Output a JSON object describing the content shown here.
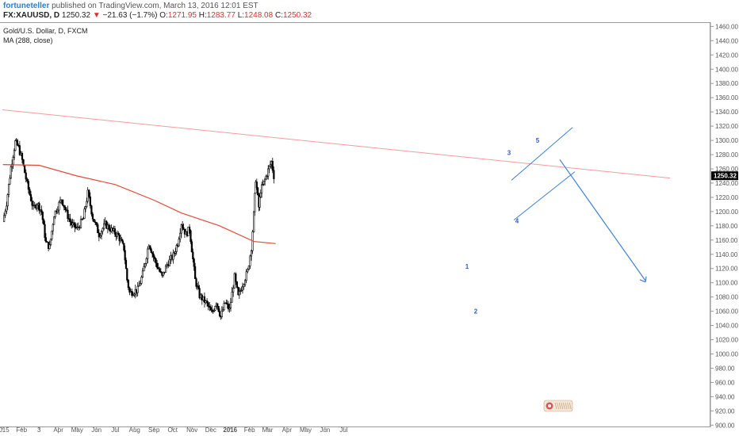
{
  "header": {
    "author": "fortuneteller",
    "published_text": "published on TradingView.com, March 13, 2016 12:01 EST",
    "symbol": "FX:XAUUSD, D",
    "last": "1250.32",
    "change_arrow": "▼",
    "change": "−21.63 (−1.7%)",
    "o_label": "O:",
    "o": "1271.95",
    "h_label": "H:",
    "h": "1283.77",
    "l_label": "L:",
    "l": "1248.08",
    "c_label": "C:",
    "c": "1250.32"
  },
  "legend": {
    "title": "Gold/U.S. Dollar, D, FXCM",
    "indicator": "MA (288, close)"
  },
  "colors": {
    "candle": "#000000",
    "ma": "#e24a3b",
    "trendline": "#f29c9c",
    "channel": "#3d7fd6",
    "arrow": "#3d7fd6",
    "wave_label": "#2f5fb8",
    "price_tag_bg": "#000000"
  },
  "chart_data": {
    "type": "candlestick",
    "symbol": "XAUUSD",
    "timeframe": "D",
    "y_axis_ticks": [
      900,
      920,
      940,
      960,
      980,
      1000,
      1020,
      1040,
      1060,
      1080,
      1100,
      1120,
      1140,
      1160,
      1180,
      1200,
      1220,
      1240,
      1260,
      1280,
      1300,
      1320,
      1340,
      1360,
      1380,
      1400,
      1420,
      1440,
      1460
    ],
    "ylim": [
      895,
      1470
    ],
    "x_axis_labels": [
      "2015",
      "Feb",
      "3",
      "Apr",
      "May",
      "Jun",
      "Jul",
      "Aug",
      "Sep",
      "Oct",
      "Nov",
      "Dec",
      "2016",
      "Feb",
      "Mar",
      "Apr",
      "May",
      "Jun",
      "Jul"
    ],
    "last_price": "1250.32",
    "price_path": [
      {
        "d": "2015-01-02",
        "v": 1186
      },
      {
        "d": "2015-01-08",
        "v": 1212
      },
      {
        "d": "2015-01-15",
        "v": 1262
      },
      {
        "d": "2015-01-22",
        "v": 1298
      },
      {
        "d": "2015-01-27",
        "v": 1290
      },
      {
        "d": "2015-02-02",
        "v": 1272
      },
      {
        "d": "2015-02-10",
        "v": 1238
      },
      {
        "d": "2015-02-20",
        "v": 1204
      },
      {
        "d": "2015-02-26",
        "v": 1212
      },
      {
        "d": "2015-03-05",
        "v": 1200
      },
      {
        "d": "2015-03-12",
        "v": 1156
      },
      {
        "d": "2015-03-18",
        "v": 1150
      },
      {
        "d": "2015-03-25",
        "v": 1196
      },
      {
        "d": "2015-04-06",
        "v": 1218
      },
      {
        "d": "2015-04-14",
        "v": 1198
      },
      {
        "d": "2015-04-22",
        "v": 1182
      },
      {
        "d": "2015-05-01",
        "v": 1176
      },
      {
        "d": "2015-05-11",
        "v": 1190
      },
      {
        "d": "2015-05-18",
        "v": 1226
      },
      {
        "d": "2015-05-26",
        "v": 1192
      },
      {
        "d": "2015-06-05",
        "v": 1168
      },
      {
        "d": "2015-06-15",
        "v": 1182
      },
      {
        "d": "2015-06-25",
        "v": 1174
      },
      {
        "d": "2015-07-06",
        "v": 1166
      },
      {
        "d": "2015-07-15",
        "v": 1148
      },
      {
        "d": "2015-07-20",
        "v": 1104
      },
      {
        "d": "2015-07-24",
        "v": 1086
      },
      {
        "d": "2015-08-06",
        "v": 1090
      },
      {
        "d": "2015-08-14",
        "v": 1112
      },
      {
        "d": "2015-08-24",
        "v": 1156
      },
      {
        "d": "2015-09-02",
        "v": 1132
      },
      {
        "d": "2015-09-14",
        "v": 1108
      },
      {
        "d": "2015-09-22",
        "v": 1126
      },
      {
        "d": "2015-10-02",
        "v": 1138
      },
      {
        "d": "2015-10-09",
        "v": 1156
      },
      {
        "d": "2015-10-15",
        "v": 1184
      },
      {
        "d": "2015-10-22",
        "v": 1168
      },
      {
        "d": "2015-10-28",
        "v": 1176
      },
      {
        "d": "2015-11-06",
        "v": 1104
      },
      {
        "d": "2015-11-13",
        "v": 1082
      },
      {
        "d": "2015-11-25",
        "v": 1070
      },
      {
        "d": "2015-12-03",
        "v": 1056
      },
      {
        "d": "2015-12-10",
        "v": 1074
      },
      {
        "d": "2015-12-17",
        "v": 1052
      },
      {
        "d": "2015-12-24",
        "v": 1072
      },
      {
        "d": "2015-12-31",
        "v": 1062
      },
      {
        "d": "2016-01-08",
        "v": 1108
      },
      {
        "d": "2016-01-14",
        "v": 1080
      },
      {
        "d": "2016-01-21",
        "v": 1098
      },
      {
        "d": "2016-01-29",
        "v": 1116
      },
      {
        "d": "2016-02-04",
        "v": 1150
      },
      {
        "d": "2016-02-08",
        "v": 1196
      },
      {
        "d": "2016-02-11",
        "v": 1246
      },
      {
        "d": "2016-02-16",
        "v": 1206
      },
      {
        "d": "2016-02-19",
        "v": 1230
      },
      {
        "d": "2016-02-24",
        "v": 1240
      },
      {
        "d": "2016-03-02",
        "v": 1258
      },
      {
        "d": "2016-03-07",
        "v": 1270
      },
      {
        "d": "2016-03-11",
        "v": 1250
      }
    ],
    "ma_288": [
      {
        "d": "2015-01-02",
        "v": 1266
      },
      {
        "d": "2015-03-01",
        "v": 1265
      },
      {
        "d": "2015-05-01",
        "v": 1250
      },
      {
        "d": "2015-07-01",
        "v": 1238
      },
      {
        "d": "2015-09-01",
        "v": 1216
      },
      {
        "d": "2015-10-15",
        "v": 1198
      },
      {
        "d": "2015-12-15",
        "v": 1180
      },
      {
        "d": "2016-02-08",
        "v": 1158
      },
      {
        "d": "2016-03-14",
        "v": 1155
      }
    ],
    "annotations": {
      "wave_labels": [
        "1",
        "2",
        "3",
        "4",
        "5"
      ],
      "trendline_label": "",
      "projection": "arrow down"
    }
  },
  "watermark": {
    "text": "TradingView"
  }
}
